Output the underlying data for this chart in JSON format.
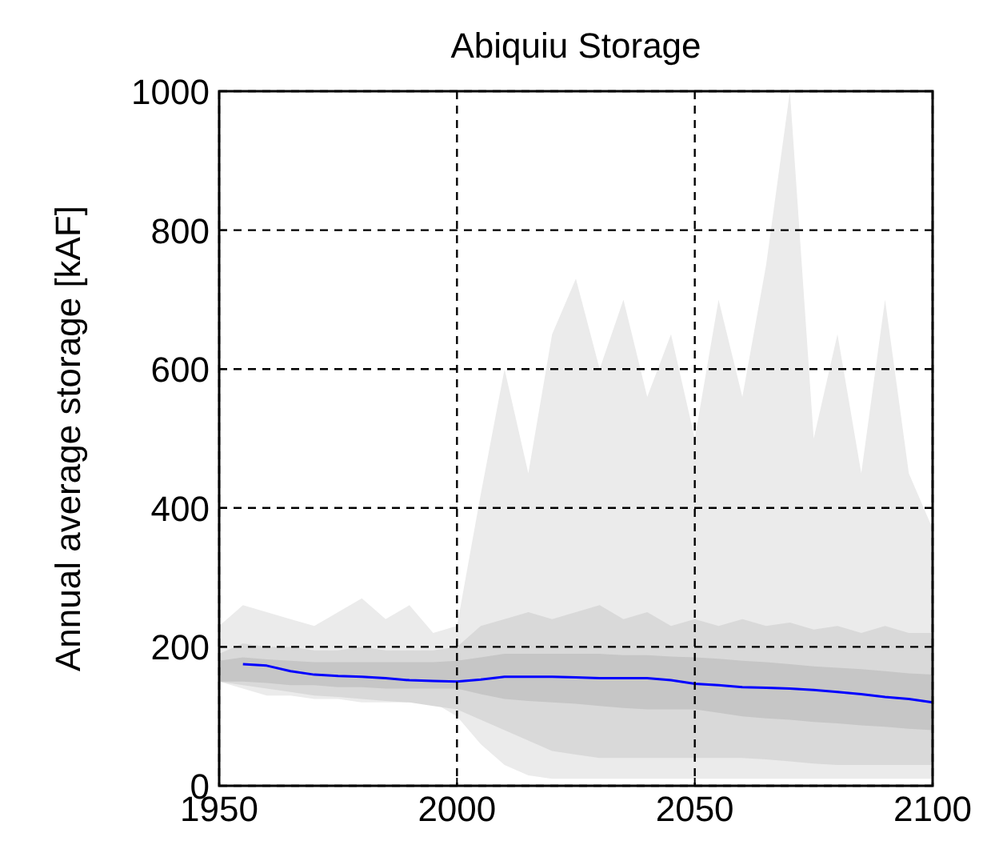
{
  "chart_data": {
    "type": "line",
    "title": "Abiquiu Storage",
    "ylabel": "Annual average storage [kAF]",
    "x": [
      1950,
      1955,
      1960,
      1965,
      1970,
      1975,
      1980,
      1985,
      1990,
      1995,
      2000,
      2005,
      2010,
      2015,
      2020,
      2025,
      2030,
      2035,
      2040,
      2045,
      2050,
      2055,
      2060,
      2065,
      2070,
      2075,
      2080,
      2085,
      2090,
      2095,
      2100
    ],
    "xlim": [
      1950,
      2100
    ],
    "xticks": [
      1950,
      2000,
      2050,
      2100
    ],
    "ylim": [
      0,
      1000
    ],
    "yticks": [
      0,
      200,
      400,
      600,
      800,
      1000
    ],
    "grid": true,
    "line_style": "solid",
    "marker": "none",
    "series": [
      {
        "color": "#ebebeb",
        "values": [
          null,
          null,
          null,
          null,
          null,
          null,
          null,
          null,
          null,
          null,
          null,
          null,
          null,
          null,
          null,
          null,
          null,
          null,
          null,
          null,
          null,
          null,
          null,
          null,
          null,
          null,
          null,
          null,
          null,
          null,
          null
        ],
        "upper": [
          230,
          260,
          250,
          240,
          230,
          250,
          270,
          240,
          260,
          220,
          230,
          420,
          600,
          450,
          650,
          730,
          600,
          700,
          560,
          650,
          500,
          700,
          560,
          750,
          1000,
          500,
          650,
          450,
          700,
          450,
          370
        ],
        "lower": [
          150,
          140,
          130,
          130,
          125,
          125,
          120,
          120,
          120,
          120,
          100,
          60,
          30,
          15,
          10,
          10,
          10,
          10,
          10,
          10,
          10,
          10,
          10,
          10,
          10,
          10,
          10,
          10,
          10,
          10,
          10
        ]
      },
      {
        "color": "#d9d9d9",
        "values": [
          null,
          null,
          null,
          null,
          null,
          null,
          null,
          null,
          null,
          null,
          null,
          null,
          null,
          null,
          null,
          null,
          null,
          null,
          null,
          null,
          null,
          null,
          null,
          null,
          null,
          null,
          null,
          null,
          null,
          null,
          null
        ],
        "upper": [
          190,
          205,
          200,
          200,
          195,
          195,
          200,
          195,
          195,
          195,
          200,
          230,
          240,
          250,
          240,
          250,
          260,
          240,
          250,
          230,
          240,
          230,
          240,
          230,
          235,
          225,
          230,
          220,
          230,
          220,
          220
        ],
        "lower": [
          150,
          145,
          140,
          135,
          130,
          128,
          125,
          122,
          120,
          115,
          110,
          95,
          80,
          65,
          50,
          45,
          40,
          40,
          40,
          40,
          40,
          40,
          40,
          38,
          35,
          32,
          30,
          30,
          30,
          30,
          30
        ]
      },
      {
        "color": "#c6c6c6",
        "values": [
          null,
          null,
          null,
          null,
          null,
          null,
          null,
          null,
          null,
          null,
          null,
          null,
          null,
          null,
          null,
          null,
          null,
          null,
          null,
          null,
          null,
          null,
          null,
          null,
          null,
          null,
          null,
          null,
          null,
          null,
          null
        ],
        "upper": [
          180,
          185,
          182,
          180,
          178,
          178,
          178,
          178,
          178,
          178,
          180,
          185,
          190,
          190,
          190,
          190,
          190,
          188,
          188,
          186,
          185,
          183,
          180,
          178,
          175,
          172,
          170,
          168,
          165,
          162,
          160
        ],
        "lower": [
          150,
          150,
          148,
          145,
          145,
          142,
          142,
          140,
          140,
          140,
          140,
          132,
          125,
          122,
          120,
          118,
          115,
          112,
          110,
          110,
          110,
          105,
          100,
          97,
          95,
          92,
          90,
          87,
          85,
          82,
          80
        ]
      },
      {
        "color": "#0000ff",
        "values": [
          null,
          175,
          173,
          165,
          160,
          158,
          157,
          155,
          152,
          151,
          150,
          153,
          157,
          157,
          157,
          156,
          155,
          155,
          155,
          152,
          147,
          145,
          142,
          141,
          140,
          138,
          135,
          132,
          128,
          125,
          120
        ]
      }
    ]
  }
}
